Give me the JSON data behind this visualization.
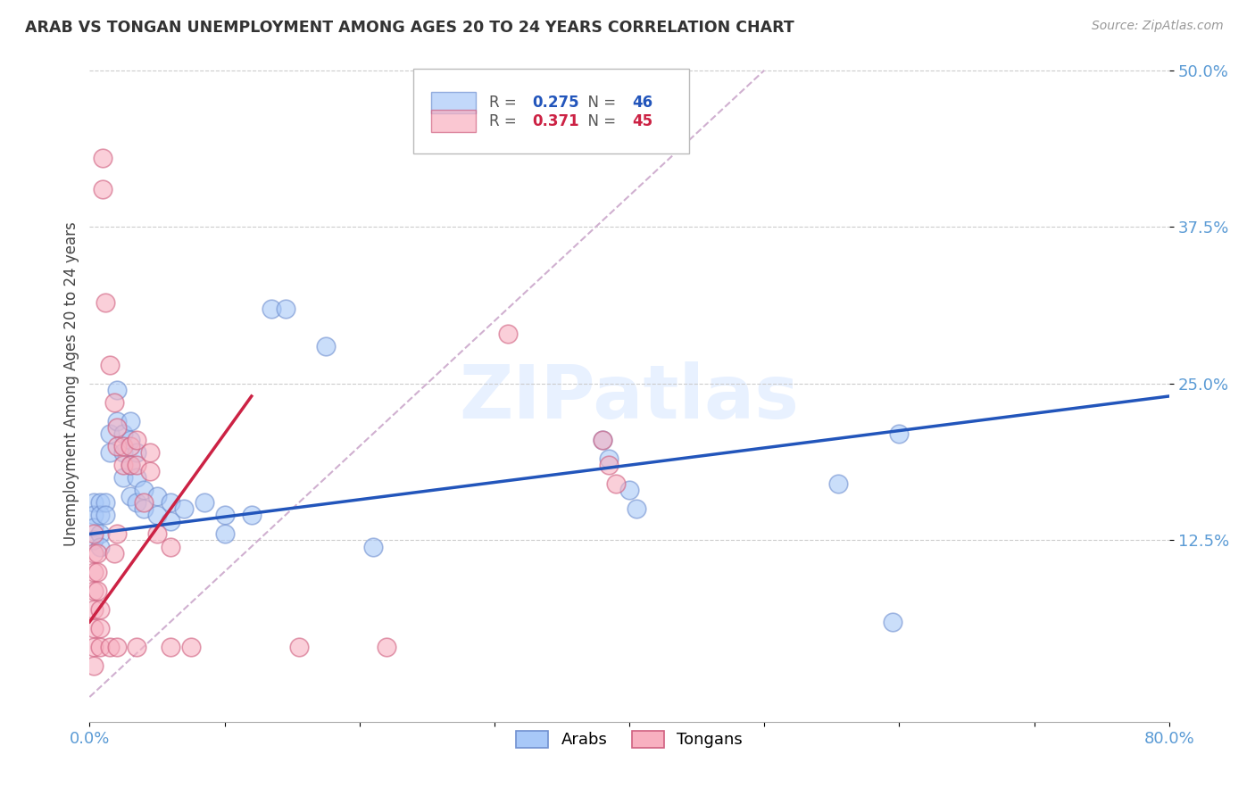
{
  "title": "ARAB VS TONGAN UNEMPLOYMENT AMONG AGES 20 TO 24 YEARS CORRELATION CHART",
  "source": "Source: ZipAtlas.com",
  "tick_color": "#5b9bd5",
  "ylabel": "Unemployment Among Ages 20 to 24 years",
  "xlim": [
    0.0,
    0.8
  ],
  "ylim": [
    -0.02,
    0.52
  ],
  "xticks": [
    0.0,
    0.1,
    0.2,
    0.3,
    0.4,
    0.5,
    0.6,
    0.7,
    0.8
  ],
  "xticklabels": [
    "0.0%",
    "",
    "",
    "",
    "",
    "",
    "",
    "",
    "80.0%"
  ],
  "ytick_positions": [
    0.125,
    0.25,
    0.375,
    0.5
  ],
  "ytick_labels": [
    "12.5%",
    "25.0%",
    "37.5%",
    "50.0%"
  ],
  "watermark": "ZIPatlas",
  "arab_color": "#a8c8f8",
  "tongan_color": "#f8b0c0",
  "arab_edge": "#7090d0",
  "tongan_edge": "#d06080",
  "arab_R": "0.275",
  "arab_N": "46",
  "tongan_R": "0.371",
  "tongan_N": "45",
  "trend_arab_color": "#2255bb",
  "trend_tongan_color": "#cc2244",
  "diagonal_color": "#d0b0d0",
  "arab_trend_x0": 0.0,
  "arab_trend_y0": 0.13,
  "arab_trend_x1": 0.8,
  "arab_trend_y1": 0.24,
  "tongan_trend_x0": 0.0,
  "tongan_trend_y0": 0.06,
  "tongan_trend_x1": 0.12,
  "tongan_trend_y1": 0.24,
  "arab_points": [
    [
      0.003,
      0.155
    ],
    [
      0.003,
      0.145
    ],
    [
      0.003,
      0.135
    ],
    [
      0.003,
      0.125
    ],
    [
      0.008,
      0.155
    ],
    [
      0.008,
      0.145
    ],
    [
      0.008,
      0.13
    ],
    [
      0.008,
      0.12
    ],
    [
      0.012,
      0.155
    ],
    [
      0.012,
      0.145
    ],
    [
      0.015,
      0.21
    ],
    [
      0.015,
      0.195
    ],
    [
      0.02,
      0.245
    ],
    [
      0.02,
      0.22
    ],
    [
      0.025,
      0.21
    ],
    [
      0.025,
      0.195
    ],
    [
      0.025,
      0.175
    ],
    [
      0.03,
      0.22
    ],
    [
      0.03,
      0.205
    ],
    [
      0.03,
      0.185
    ],
    [
      0.03,
      0.16
    ],
    [
      0.035,
      0.195
    ],
    [
      0.035,
      0.175
    ],
    [
      0.035,
      0.155
    ],
    [
      0.04,
      0.165
    ],
    [
      0.04,
      0.15
    ],
    [
      0.05,
      0.16
    ],
    [
      0.05,
      0.145
    ],
    [
      0.06,
      0.155
    ],
    [
      0.06,
      0.14
    ],
    [
      0.07,
      0.15
    ],
    [
      0.085,
      0.155
    ],
    [
      0.1,
      0.145
    ],
    [
      0.1,
      0.13
    ],
    [
      0.12,
      0.145
    ],
    [
      0.135,
      0.31
    ],
    [
      0.145,
      0.31
    ],
    [
      0.175,
      0.28
    ],
    [
      0.21,
      0.12
    ],
    [
      0.38,
      0.205
    ],
    [
      0.385,
      0.19
    ],
    [
      0.4,
      0.165
    ],
    [
      0.405,
      0.15
    ],
    [
      0.555,
      0.17
    ],
    [
      0.595,
      0.06
    ],
    [
      0.6,
      0.21
    ]
  ],
  "tongan_points": [
    [
      0.003,
      0.13
    ],
    [
      0.003,
      0.115
    ],
    [
      0.003,
      0.1
    ],
    [
      0.003,
      0.085
    ],
    [
      0.003,
      0.07
    ],
    [
      0.003,
      0.055
    ],
    [
      0.003,
      0.04
    ],
    [
      0.003,
      0.025
    ],
    [
      0.006,
      0.115
    ],
    [
      0.006,
      0.1
    ],
    [
      0.006,
      0.085
    ],
    [
      0.008,
      0.07
    ],
    [
      0.008,
      0.055
    ],
    [
      0.008,
      0.04
    ],
    [
      0.01,
      0.43
    ],
    [
      0.01,
      0.405
    ],
    [
      0.012,
      0.315
    ],
    [
      0.015,
      0.265
    ],
    [
      0.018,
      0.235
    ],
    [
      0.02,
      0.215
    ],
    [
      0.02,
      0.2
    ],
    [
      0.02,
      0.13
    ],
    [
      0.025,
      0.2
    ],
    [
      0.025,
      0.185
    ],
    [
      0.03,
      0.2
    ],
    [
      0.03,
      0.185
    ],
    [
      0.035,
      0.205
    ],
    [
      0.035,
      0.185
    ],
    [
      0.04,
      0.155
    ],
    [
      0.045,
      0.195
    ],
    [
      0.045,
      0.18
    ],
    [
      0.05,
      0.13
    ],
    [
      0.06,
      0.12
    ],
    [
      0.015,
      0.04
    ],
    [
      0.02,
      0.04
    ],
    [
      0.035,
      0.04
    ],
    [
      0.06,
      0.04
    ],
    [
      0.075,
      0.04
    ],
    [
      0.155,
      0.04
    ],
    [
      0.22,
      0.04
    ],
    [
      0.38,
      0.205
    ],
    [
      0.385,
      0.185
    ],
    [
      0.39,
      0.17
    ],
    [
      0.31,
      0.29
    ],
    [
      0.018,
      0.115
    ]
  ]
}
